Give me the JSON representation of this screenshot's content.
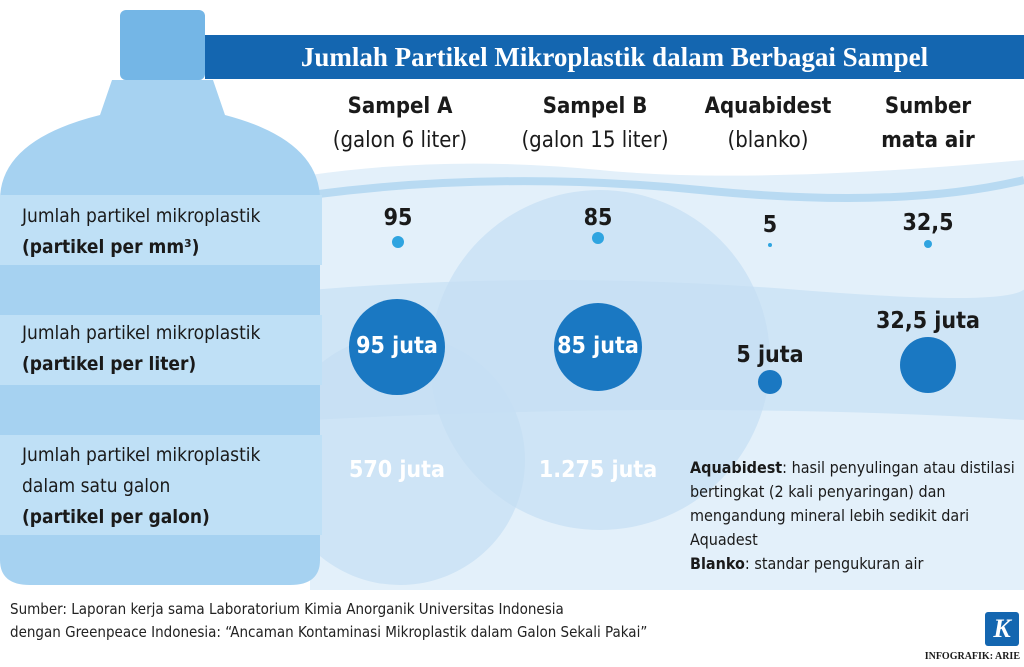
{
  "title": "Jumlah Partikel Mikroplastik dalam Berbagai Sampel",
  "columns": [
    {
      "name": "Sampel A",
      "sub": "(galon 6 liter)"
    },
    {
      "name": "Sampel B",
      "sub": "(galon 15 liter)"
    },
    {
      "name": "Aquabidest",
      "sub": "(blanko)"
    },
    {
      "name": "Sumber",
      "sub": "mata air"
    }
  ],
  "rows": [
    {
      "label": [
        "Jumlah partikel mikroplastik",
        "(partikel per mm³)"
      ],
      "cells": [
        "95",
        "85",
        "5",
        "32,5"
      ]
    },
    {
      "label": [
        "Jumlah partikel mikroplastik",
        "(partikel per liter)"
      ],
      "cells": [
        "95 juta",
        "85 juta",
        "5 juta",
        "32,5 juta"
      ]
    },
    {
      "label": [
        "Jumlah partikel mikroplastik",
        "dalam satu galon",
        "(partikel per galon)"
      ],
      "cells": [
        "570 juta",
        "1.275 juta"
      ]
    }
  ],
  "notes": [
    {
      "term": "Aquabidest",
      "text": ": hasil penyulingan atau distilasi bertingkat (2 kali penyaringan) dan mengandung mineral lebih sedikit dari Aquadest"
    },
    {
      "term": "Blanko",
      "text": ": standar pengukuran air"
    }
  ],
  "source": [
    "Sumber: Laporan kerja sama Laboratorium Kimia Anorganik Universitas Indonesia",
    "dengan Greenpeace Indonesia: “Ancaman Kontaminasi Mikroplastik dalam Galon Sekali Pakai”"
  ],
  "logo": "K",
  "credit": "INFOGRAFIK: ARIE"
}
